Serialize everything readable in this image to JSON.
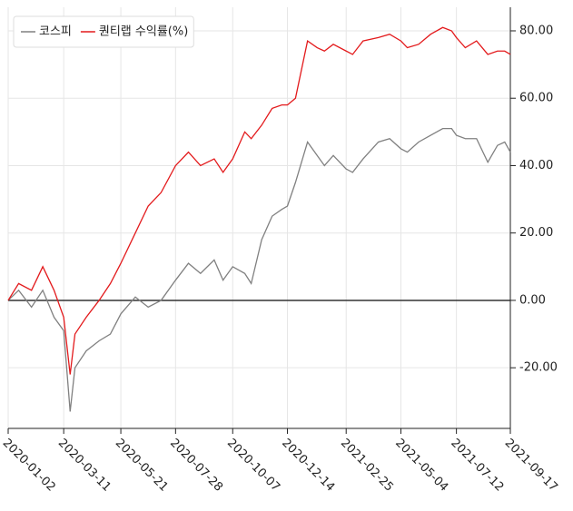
{
  "chart_data": {
    "type": "line",
    "x": [
      "2020-01-02",
      "2020-01-15",
      "2020-01-31",
      "2020-02-14",
      "2020-02-28",
      "2020-03-11",
      "2020-03-19",
      "2020-03-25",
      "2020-04-08",
      "2020-04-24",
      "2020-05-08",
      "2020-05-21",
      "2020-06-08",
      "2020-06-24",
      "2020-07-10",
      "2020-07-28",
      "2020-08-13",
      "2020-08-28",
      "2020-09-14",
      "2020-09-25",
      "2020-10-07",
      "2020-10-22",
      "2020-10-30",
      "2020-11-12",
      "2020-11-25",
      "2020-12-07",
      "2020-12-14",
      "2020-12-24",
      "2021-01-08",
      "2021-01-20",
      "2021-01-29",
      "2021-02-09",
      "2021-02-25",
      "2021-03-05",
      "2021-03-18",
      "2021-04-06",
      "2021-04-20",
      "2021-05-04",
      "2021-05-12",
      "2021-05-26",
      "2021-06-10",
      "2021-06-25",
      "2021-07-06",
      "2021-07-12",
      "2021-07-23",
      "2021-08-06",
      "2021-08-20",
      "2021-09-01",
      "2021-09-10",
      "2021-09-17"
    ],
    "series": [
      {
        "name": "코스피",
        "color": "#808080",
        "values": [
          0,
          3,
          -2,
          3,
          -5,
          -9,
          -33,
          -20,
          -15,
          -12,
          -10,
          -4,
          1,
          -2,
          0,
          6,
          11,
          8,
          12,
          6,
          10,
          8,
          5,
          18,
          25,
          27,
          28,
          35,
          47,
          43,
          40,
          43,
          39,
          38,
          42,
          47,
          48,
          45,
          44,
          47,
          49,
          51,
          51,
          49,
          48,
          48,
          41,
          46,
          47,
          44
        ]
      },
      {
        "name": "퀀티랩 수익률(%)",
        "color": "#e31a1c",
        "values": [
          0,
          5,
          3,
          10,
          3,
          -5,
          -22,
          -10,
          -5,
          0,
          5,
          11,
          20,
          28,
          32,
          40,
          44,
          40,
          42,
          38,
          42,
          50,
          48,
          52,
          57,
          58,
          58,
          60,
          77,
          75,
          74,
          76,
          74,
          73,
          77,
          78,
          79,
          77,
          75,
          76,
          79,
          81,
          80,
          78,
          75,
          77,
          73,
          74,
          74,
          73
        ]
      }
    ],
    "xlim": [
      "2020-01-02",
      "2021-09-17"
    ],
    "xticks": [
      "2020-01-02",
      "2020-03-11",
      "2020-05-21",
      "2020-07-28",
      "2020-10-07",
      "2020-12-14",
      "2021-02-25",
      "2021-05-04",
      "2021-07-12",
      "2021-09-17"
    ],
    "ylim": [
      -38,
      87
    ],
    "yticks": [
      {
        "value": -20,
        "label": "-20.00"
      },
      {
        "value": 0,
        "label": "0.00"
      },
      {
        "value": 20,
        "label": "20.00"
      },
      {
        "value": 40,
        "label": "40.00"
      },
      {
        "value": 60,
        "label": "60.00"
      },
      {
        "value": 80,
        "label": "80.00"
      }
    ],
    "grid": true,
    "legend": "upper left"
  }
}
